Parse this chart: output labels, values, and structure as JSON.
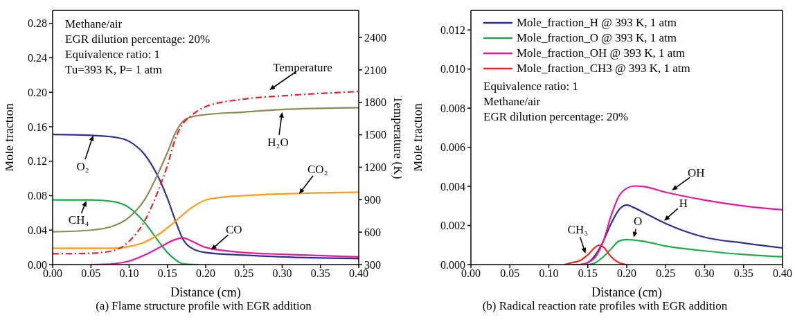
{
  "chart_data": [
    {
      "type": "line",
      "title": "(a) Flame structure profile with EGR addition",
      "xlabel": "Distance (cm)",
      "ylabel": "Mole fraction",
      "y2label": "Temperature (K)",
      "xlim": [
        0,
        0.4
      ],
      "xticks": [
        {
          "value": 0,
          "label": "0.00"
        },
        0.05,
        {
          "value": 0.1,
          "label": "0.10"
        },
        0.15,
        {
          "value": 0.2,
          "label": "0.20"
        },
        0.25,
        {
          "value": 0.3,
          "label": "0.30"
        },
        0.35,
        {
          "value": 0.4,
          "label": "0.40"
        }
      ],
      "ylim": [
        0,
        0.295
      ],
      "yticks": [
        {
          "value": 0,
          "label": "0.00"
        },
        0.04,
        0.08,
        0.12,
        0.16,
        {
          "value": 0.2,
          "label": "0.20"
        },
        0.24,
        0.28
      ],
      "y2lim": [
        300,
        2650
      ],
      "y2ticks": [
        300,
        600,
        900,
        1200,
        1500,
        1800,
        2100,
        2400
      ],
      "grid": false,
      "legend": false,
      "marker": "none",
      "series": [
        {
          "color": "#2b2f8f",
          "x": [
            0,
            0.05,
            0.08,
            0.1,
            0.12,
            0.14,
            0.15,
            0.16,
            0.17,
            0.18,
            0.2,
            0.25,
            0.3,
            0.4
          ],
          "values": [
            0.151,
            0.15,
            0.148,
            0.143,
            0.128,
            0.098,
            0.077,
            0.052,
            0.03,
            0.02,
            0.014,
            0.011,
            0.009,
            0.007
          ]
        },
        {
          "color": "#1aaa4a",
          "x": [
            0,
            0.05,
            0.08,
            0.1,
            0.12,
            0.14,
            0.15,
            0.16,
            0.17,
            0.19
          ],
          "values": [
            0.075,
            0.075,
            0.073,
            0.066,
            0.049,
            0.025,
            0.014,
            0.006,
            0.001,
            0
          ]
        },
        {
          "color": "#8b8a55",
          "x": [
            0,
            0.05,
            0.08,
            0.1,
            0.12,
            0.14,
            0.15,
            0.16,
            0.17,
            0.18,
            0.2,
            0.25,
            0.3,
            0.4
          ],
          "values": [
            0.038,
            0.04,
            0.045,
            0.055,
            0.075,
            0.11,
            0.13,
            0.152,
            0.166,
            0.171,
            0.174,
            0.177,
            0.18,
            0.182
          ]
        },
        {
          "color": "#ff9a1a",
          "x": [
            0,
            0.08,
            0.1,
            0.12,
            0.14,
            0.16,
            0.18,
            0.2,
            0.22,
            0.25,
            0.3,
            0.4
          ],
          "values": [
            0.019,
            0.019,
            0.021,
            0.026,
            0.036,
            0.05,
            0.065,
            0.075,
            0.078,
            0.08,
            0.082,
            0.084
          ]
        },
        {
          "color": "#e8179a",
          "x": [
            0.05,
            0.08,
            0.1,
            0.12,
            0.14,
            0.16,
            0.17,
            0.18,
            0.2,
            0.25,
            0.3,
            0.4
          ],
          "values": [
            0,
            0.001,
            0.004,
            0.011,
            0.02,
            0.029,
            0.031,
            0.028,
            0.02,
            0.014,
            0.012,
            0.009
          ]
        },
        {
          "color": "#e8202a",
          "axis": "y2",
          "line_style": "dashed",
          "x": [
            0,
            0.05,
            0.08,
            0.1,
            0.12,
            0.14,
            0.15,
            0.16,
            0.17,
            0.18,
            0.2,
            0.25,
            0.3,
            0.4
          ],
          "values": [
            400,
            405,
            430,
            515,
            700,
            1020,
            1215,
            1455,
            1600,
            1670,
            1760,
            1830,
            1860,
            1900
          ]
        }
      ],
      "annotations": [
        "Methane/air",
        "EGR dilution percentage: 20%",
        "Equivalence ratio: 1",
        "Tu=393 K, P= 1 atm",
        {
          "text": "O₂",
          "x": 0.053,
          "y": 0.15
        },
        {
          "text": "CH₄",
          "x": 0.044,
          "y": 0.074
        },
        {
          "text": "H₂O",
          "x": 0.3,
          "y": 0.177
        },
        {
          "text": "CO₂",
          "x": 0.322,
          "y": 0.082
        },
        {
          "text": "CO",
          "x": 0.207,
          "y": 0.017
        },
        "Temperature"
      ]
    },
    {
      "type": "line",
      "title": "(b) Radical reaction rate profiles with EGR addition",
      "xlabel": "Distance (cm)",
      "ylabel": "Mole fraction",
      "xlim": [
        0,
        0.4
      ],
      "xticks": [
        {
          "value": 0,
          "label": "0.00"
        },
        0.05,
        {
          "value": 0.1,
          "label": "0.10"
        },
        0.15,
        {
          "value": 0.2,
          "label": "0.20"
        },
        0.25,
        {
          "value": 0.3,
          "label": "0.30"
        },
        0.35,
        {
          "value": 0.4,
          "label": "0.40"
        }
      ],
      "ylim": [
        0,
        0.013
      ],
      "yticks": [
        {
          "value": 0,
          "label": "0.000"
        },
        0.002,
        0.004,
        0.006,
        0.008,
        {
          "value": 0.01,
          "label": "0.010"
        },
        0.012
      ],
      "grid": false,
      "legend": "top left",
      "marker": "none",
      "series": [
        {
          "name": "Mole_fraction_H @ 393 K, 1 atm",
          "color": "#2b2f8f",
          "x": [
            0.13,
            0.14,
            0.15,
            0.16,
            0.17,
            0.18,
            0.19,
            0.2,
            0.21,
            0.22,
            0.25,
            0.3,
            0.35,
            0.4
          ],
          "values": [
            0,
            0,
            0.0001,
            0.0005,
            0.0012,
            0.0021,
            0.0028,
            0.00305,
            0.0029,
            0.0027,
            0.0021,
            0.0014,
            0.0011,
            0.00085
          ]
        },
        {
          "name": "Mole_fraction_O @ 393 K, 1 atm",
          "color": "#1aaa4a",
          "x": [
            0.14,
            0.15,
            0.16,
            0.17,
            0.18,
            0.19,
            0.2,
            0.22,
            0.25,
            0.3,
            0.35,
            0.4
          ],
          "values": [
            0,
            0,
            0.0001,
            0.0004,
            0.0008,
            0.0012,
            0.00128,
            0.0012,
            0.00095,
            0.0007,
            0.00052,
            0.0004
          ]
        },
        {
          "name": "Mole_fraction_OH @ 393 K, 1 atm",
          "color": "#e8179a",
          "x": [
            0.14,
            0.15,
            0.16,
            0.17,
            0.18,
            0.19,
            0.2,
            0.21,
            0.22,
            0.25,
            0.3,
            0.35,
            0.4
          ],
          "values": [
            0,
            0.0001,
            0.0004,
            0.0012,
            0.0025,
            0.0035,
            0.0039,
            0.00402,
            0.004,
            0.0037,
            0.0033,
            0.003,
            0.0028
          ]
        },
        {
          "name": "Mole_fraction_CH3 @ 393 K, 1 atm",
          "color": "#ee2222",
          "x": [
            0.12,
            0.13,
            0.14,
            0.15,
            0.16,
            0.165,
            0.17,
            0.18,
            0.19,
            0.2
          ],
          "values": [
            0,
            0.0001,
            0.0002,
            0.0005,
            0.0009,
            0.001,
            0.0009,
            0.0004,
            0.0001,
            0
          ]
        }
      ],
      "annotations": [
        "Equivalence ratio: 1",
        "Methane/air",
        "EGR dilution percentage: 20%",
        {
          "text": "OH",
          "x": 0.258,
          "y": 0.0038
        },
        {
          "text": "H",
          "x": 0.248,
          "y": 0.00224
        },
        {
          "text": "O",
          "x": 0.209,
          "y": 0.00139
        },
        {
          "text": "CH₃",
          "x": 0.147,
          "y": 0.00057
        }
      ]
    }
  ]
}
